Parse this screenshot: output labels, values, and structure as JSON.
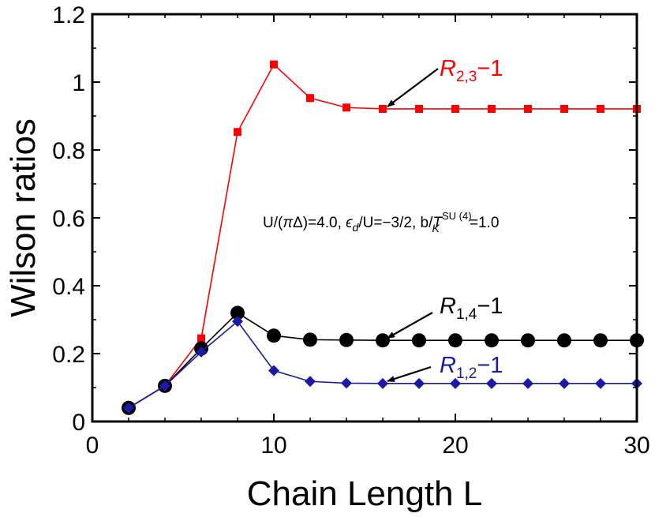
{
  "chart_data": {
    "type": "line",
    "title": "",
    "xlabel": "Chain Length L",
    "ylabel": "Wilson ratios",
    "xlim": [
      0,
      30
    ],
    "ylim": [
      0,
      1.2
    ],
    "xticks": [
      "0",
      "10",
      "20",
      "30"
    ],
    "yticks": [
      "0",
      "0.2",
      "0.4",
      "0.6",
      "0.8",
      "1",
      "1.2"
    ],
    "grid": false,
    "annotation": {
      "u_part": "U/(",
      "pi": "π",
      "delta_part": "Δ)=4.0, ",
      "eps": "ϵ",
      "eps_sub": "d",
      "eps_part": "/U=−3/2, b/",
      "tk": "T",
      "tk_sub": "K",
      "tk_sup": "SU (4)",
      "tail": "=1.0"
    },
    "series": [
      {
        "name": "R_{2,3}−1",
        "label_main": "R",
        "label_sub": "2,3",
        "label_tail": "−1",
        "color": "#ff0000",
        "marker": "square",
        "x": [
          2,
          4,
          6,
          8,
          10,
          12,
          14,
          16,
          18,
          20,
          22,
          24,
          26,
          28,
          30
        ],
        "y": [
          0.04,
          0.105,
          0.245,
          0.853,
          1.052,
          0.953,
          0.925,
          0.921,
          0.921,
          0.921,
          0.921,
          0.921,
          0.921,
          0.921,
          0.921
        ]
      },
      {
        "name": "R_{1,4}−1",
        "label_main": "R",
        "label_sub": "1,4",
        "label_tail": "−1",
        "color": "#000000",
        "marker": "circle",
        "x": [
          2,
          4,
          6,
          8,
          10,
          12,
          14,
          16,
          18,
          20,
          22,
          24,
          26,
          28,
          30
        ],
        "y": [
          0.04,
          0.105,
          0.215,
          0.32,
          0.253,
          0.241,
          0.24,
          0.239,
          0.239,
          0.239,
          0.239,
          0.239,
          0.239,
          0.239,
          0.239
        ]
      },
      {
        "name": "R_{1,2}−1",
        "label_main": "R",
        "label_sub": "1,2",
        "label_tail": "−1",
        "color": "#1a1aa6",
        "marker": "diamond",
        "x": [
          2,
          4,
          6,
          8,
          10,
          12,
          14,
          16,
          18,
          20,
          22,
          24,
          26,
          28,
          30
        ],
        "y": [
          0.04,
          0.105,
          0.205,
          0.295,
          0.15,
          0.118,
          0.113,
          0.112,
          0.112,
          0.112,
          0.112,
          0.112,
          0.112,
          0.112,
          0.112
        ]
      }
    ],
    "arrows": [
      {
        "series": "R_{2,3}−1",
        "point_x": 16,
        "point_y": 0.921
      },
      {
        "series": "R_{1,4}−1",
        "point_x": 16,
        "point_y": 0.239
      },
      {
        "series": "R_{1,2}−1",
        "point_x": 16,
        "point_y": 0.112
      }
    ]
  }
}
